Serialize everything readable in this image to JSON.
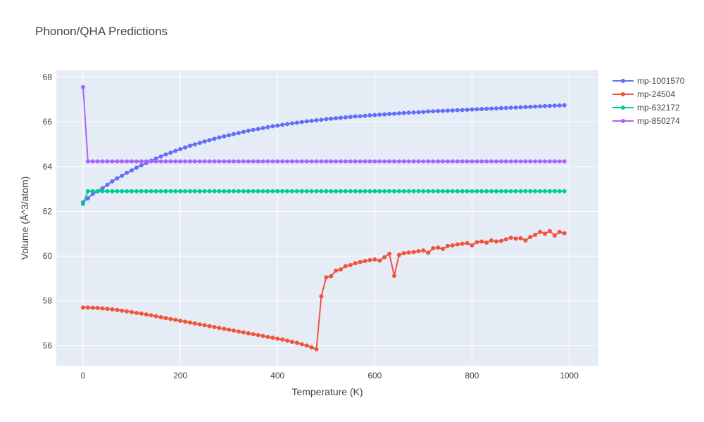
{
  "chart_data": {
    "type": "line",
    "title": "Phonon/QHA Predictions",
    "xlabel": "Temperature (K)",
    "ylabel": "Volume (Å^3/atom)",
    "xlim": [
      -55,
      1060
    ],
    "ylim": [
      55.1,
      68.3
    ],
    "xticks": [
      0,
      200,
      400,
      600,
      800,
      1000
    ],
    "yticks": [
      56,
      58,
      60,
      62,
      64,
      66,
      68
    ],
    "grid": true,
    "legend_position": "top-right",
    "series": [
      {
        "name": "mp-1001570",
        "color": "#636efa",
        "x": [
          0,
          10,
          20,
          30,
          40,
          50,
          60,
          70,
          80,
          90,
          100,
          110,
          120,
          130,
          140,
          150,
          160,
          170,
          180,
          190,
          200,
          210,
          220,
          230,
          240,
          250,
          260,
          270,
          280,
          290,
          300,
          310,
          320,
          330,
          340,
          350,
          360,
          370,
          380,
          390,
          400,
          410,
          420,
          430,
          440,
          450,
          460,
          470,
          480,
          490,
          500,
          510,
          520,
          530,
          540,
          550,
          560,
          570,
          580,
          590,
          600,
          610,
          620,
          630,
          640,
          650,
          660,
          670,
          680,
          690,
          700,
          710,
          720,
          730,
          740,
          750,
          760,
          770,
          780,
          790,
          800,
          810,
          820,
          830,
          840,
          850,
          860,
          870,
          880,
          890,
          900,
          910,
          920,
          930,
          940,
          950,
          960,
          970,
          980,
          990
        ],
        "y": [
          62.4,
          62.58,
          62.78,
          62.89,
          63.03,
          63.19,
          63.34,
          63.47,
          63.59,
          63.72,
          63.83,
          63.95,
          64.06,
          64.16,
          64.26,
          64.36,
          64.45,
          64.54,
          64.62,
          64.7,
          64.78,
          64.85,
          64.93,
          64.99,
          65.06,
          65.12,
          65.18,
          65.24,
          65.3,
          65.35,
          65.4,
          65.45,
          65.5,
          65.55,
          65.6,
          65.64,
          65.68,
          65.72,
          65.76,
          65.8,
          65.83,
          65.87,
          65.9,
          65.93,
          65.96,
          65.99,
          66.02,
          66.04,
          66.07,
          66.09,
          66.12,
          66.14,
          66.16,
          66.18,
          66.2,
          66.22,
          66.24,
          66.25,
          66.27,
          66.29,
          66.3,
          66.32,
          66.33,
          66.35,
          66.36,
          66.38,
          66.39,
          66.41,
          66.42,
          66.43,
          66.44,
          66.46,
          66.47,
          66.48,
          66.49,
          66.5,
          66.51,
          66.52,
          66.53,
          66.54,
          66.55,
          66.56,
          66.57,
          66.58,
          66.59,
          66.6,
          66.61,
          66.62,
          66.63,
          66.64,
          66.65,
          66.66,
          66.67,
          66.68,
          66.69,
          66.7,
          66.71,
          66.72,
          66.73,
          66.74
        ]
      },
      {
        "name": "mp-24504",
        "color": "#ef553b",
        "x": [
          0,
          10,
          20,
          30,
          40,
          50,
          60,
          70,
          80,
          90,
          100,
          110,
          120,
          130,
          140,
          150,
          160,
          170,
          180,
          190,
          200,
          210,
          220,
          230,
          240,
          250,
          260,
          270,
          280,
          290,
          300,
          310,
          320,
          330,
          340,
          350,
          360,
          370,
          380,
          390,
          400,
          410,
          420,
          430,
          440,
          450,
          460,
          470,
          480,
          490,
          500,
          510,
          520,
          530,
          540,
          550,
          560,
          570,
          580,
          590,
          600,
          610,
          620,
          630,
          640,
          650,
          660,
          670,
          680,
          690,
          700,
          710,
          720,
          730,
          740,
          750,
          760,
          770,
          780,
          790,
          800,
          810,
          820,
          830,
          840,
          850,
          860,
          870,
          880,
          890,
          900,
          910,
          920,
          930,
          940,
          950,
          960,
          970,
          980,
          990
        ],
        "y": [
          57.7,
          57.7,
          57.69,
          57.68,
          57.66,
          57.64,
          57.62,
          57.59,
          57.56,
          57.53,
          57.5,
          57.46,
          57.43,
          57.39,
          57.35,
          57.31,
          57.27,
          57.23,
          57.19,
          57.15,
          57.11,
          57.07,
          57.03,
          56.99,
          56.95,
          56.91,
          56.87,
          56.83,
          56.79,
          56.75,
          56.71,
          56.67,
          56.63,
          56.59,
          56.55,
          56.51,
          56.47,
          56.43,
          56.39,
          56.35,
          56.31,
          56.27,
          56.22,
          56.17,
          56.12,
          56.06,
          56.0,
          55.92,
          55.84,
          58.2,
          59.05,
          59.1,
          59.35,
          59.4,
          59.55,
          59.6,
          59.68,
          59.73,
          59.78,
          59.82,
          59.85,
          59.8,
          59.95,
          60.1,
          59.12,
          60.05,
          60.13,
          60.16,
          60.18,
          60.22,
          60.25,
          60.15,
          60.35,
          60.38,
          60.32,
          60.45,
          60.48,
          60.52,
          60.55,
          60.58,
          60.48,
          60.62,
          60.65,
          60.6,
          60.7,
          60.65,
          60.68,
          60.75,
          60.82,
          60.78,
          60.8,
          60.7,
          60.85,
          60.95,
          61.08,
          61.0,
          61.12,
          60.92,
          61.08,
          61.02
        ]
      },
      {
        "name": "mp-632172",
        "color": "#00cc96",
        "x": [
          0,
          10,
          20,
          30,
          40,
          50,
          60,
          70,
          80,
          90,
          100,
          110,
          120,
          130,
          140,
          150,
          160,
          170,
          180,
          190,
          200,
          210,
          220,
          230,
          240,
          250,
          260,
          270,
          280,
          290,
          300,
          310,
          320,
          330,
          340,
          350,
          360,
          370,
          380,
          390,
          400,
          410,
          420,
          430,
          440,
          450,
          460,
          470,
          480,
          490,
          500,
          510,
          520,
          530,
          540,
          550,
          560,
          570,
          580,
          590,
          600,
          610,
          620,
          630,
          640,
          650,
          660,
          670,
          680,
          690,
          700,
          710,
          720,
          730,
          740,
          750,
          760,
          770,
          780,
          790,
          800,
          810,
          820,
          830,
          840,
          850,
          860,
          870,
          880,
          890,
          900,
          910,
          920,
          930,
          940,
          950,
          960,
          970,
          980,
          990
        ],
        "y": [
          62.33,
          62.9,
          62.9,
          62.9,
          62.9,
          62.9,
          62.9,
          62.9,
          62.9,
          62.9,
          62.9,
          62.9,
          62.9,
          62.9,
          62.9,
          62.9,
          62.9,
          62.9,
          62.9,
          62.9,
          62.9,
          62.9,
          62.9,
          62.9,
          62.9,
          62.9,
          62.9,
          62.9,
          62.9,
          62.9,
          62.9,
          62.9,
          62.9,
          62.9,
          62.9,
          62.9,
          62.9,
          62.9,
          62.9,
          62.9,
          62.9,
          62.9,
          62.9,
          62.9,
          62.9,
          62.9,
          62.9,
          62.9,
          62.9,
          62.9,
          62.9,
          62.9,
          62.9,
          62.9,
          62.9,
          62.9,
          62.9,
          62.9,
          62.9,
          62.9,
          62.9,
          62.9,
          62.9,
          62.9,
          62.9,
          62.9,
          62.9,
          62.9,
          62.9,
          62.9,
          62.9,
          62.9,
          62.9,
          62.9,
          62.9,
          62.9,
          62.9,
          62.9,
          62.9,
          62.9,
          62.9,
          62.9,
          62.9,
          62.9,
          62.9,
          62.9,
          62.9,
          62.9,
          62.9,
          62.9,
          62.9,
          62.9,
          62.9,
          62.9,
          62.9,
          62.9,
          62.9,
          62.9,
          62.9,
          62.9
        ]
      },
      {
        "name": "mp-850274",
        "color": "#ab63fa",
        "x": [
          0,
          10,
          20,
          30,
          40,
          50,
          60,
          70,
          80,
          90,
          100,
          110,
          120,
          130,
          140,
          150,
          160,
          170,
          180,
          190,
          200,
          210,
          220,
          230,
          240,
          250,
          260,
          270,
          280,
          290,
          300,
          310,
          320,
          330,
          340,
          350,
          360,
          370,
          380,
          390,
          400,
          410,
          420,
          430,
          440,
          450,
          460,
          470,
          480,
          490,
          500,
          510,
          520,
          530,
          540,
          550,
          560,
          570,
          580,
          590,
          600,
          610,
          620,
          630,
          640,
          650,
          660,
          670,
          680,
          690,
          700,
          710,
          720,
          730,
          740,
          750,
          760,
          770,
          780,
          790,
          800,
          810,
          820,
          830,
          840,
          850,
          860,
          870,
          880,
          890,
          900,
          910,
          920,
          930,
          940,
          950,
          960,
          970,
          980,
          990
        ],
        "y": [
          67.55,
          64.23,
          64.23,
          64.23,
          64.23,
          64.23,
          64.23,
          64.23,
          64.23,
          64.23,
          64.23,
          64.23,
          64.23,
          64.23,
          64.23,
          64.23,
          64.23,
          64.23,
          64.23,
          64.23,
          64.23,
          64.23,
          64.23,
          64.23,
          64.23,
          64.23,
          64.23,
          64.23,
          64.23,
          64.23,
          64.23,
          64.23,
          64.23,
          64.23,
          64.23,
          64.23,
          64.23,
          64.23,
          64.23,
          64.23,
          64.23,
          64.23,
          64.23,
          64.23,
          64.23,
          64.23,
          64.23,
          64.23,
          64.23,
          64.23,
          64.23,
          64.23,
          64.23,
          64.23,
          64.23,
          64.23,
          64.23,
          64.23,
          64.23,
          64.23,
          64.23,
          64.23,
          64.23,
          64.23,
          64.23,
          64.23,
          64.23,
          64.23,
          64.23,
          64.23,
          64.23,
          64.23,
          64.23,
          64.23,
          64.23,
          64.23,
          64.23,
          64.23,
          64.23,
          64.23,
          64.23,
          64.23,
          64.23,
          64.23,
          64.23,
          64.23,
          64.23,
          64.23,
          64.23,
          64.23,
          64.23,
          64.23,
          64.23,
          64.23,
          64.23,
          64.23,
          64.23,
          64.23,
          64.23,
          64.23
        ]
      }
    ]
  }
}
